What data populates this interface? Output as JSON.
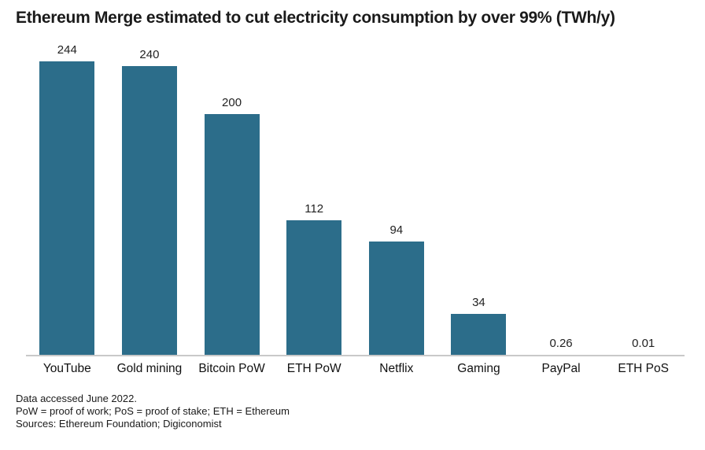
{
  "title": "Ethereum Merge estimated to cut electricity consumption by over 99% (TWh/y)",
  "chart_data": {
    "type": "bar",
    "categories": [
      "YouTube",
      "Gold mining",
      "Bitcoin PoW",
      "ETH PoW",
      "Netflix",
      "Gaming",
      "PayPal",
      "ETH PoS"
    ],
    "values": [
      244,
      240,
      200,
      112,
      94,
      34,
      0.26,
      0.01
    ],
    "value_labels": [
      "244",
      "240",
      "200",
      "112",
      "94",
      "34",
      "0.26",
      "0.01"
    ],
    "title": "Ethereum Merge estimated to cut electricity consumption by over 99% (TWh/y)",
    "xlabel": "",
    "ylabel": "",
    "unit": "TWh/y",
    "ylim": [
      0,
      260
    ],
    "grid": false,
    "legend": false,
    "y_axis_shown": false,
    "value_labels_position": "above-bars",
    "bar_color": "#2c6d8a",
    "axis_line_color": "#c9c9c9"
  },
  "footnotes": {
    "line1": "Data accessed June 2022.",
    "line2": "PoW = proof of work; PoS = proof of stake; ETH = Ethereum",
    "line3": "Sources: Ethereum Foundation; Digiconomist"
  }
}
